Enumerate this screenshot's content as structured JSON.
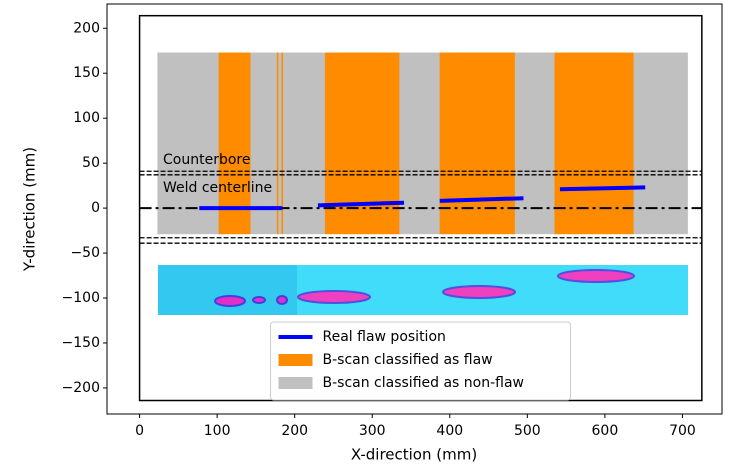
{
  "chart_data": {
    "type": "region",
    "xlabel": "X-direction (mm)",
    "ylabel": "Y-direction (mm)",
    "xlim": [
      -42,
      751
    ],
    "ylim": [
      -229,
      227
    ],
    "xticks": [
      0,
      100,
      200,
      300,
      400,
      500,
      600,
      700
    ],
    "yticks": [
      {
        "value": -200,
        "label": "−200"
      },
      {
        "value": -150,
        "label": "−150"
      },
      {
        "value": -100,
        "label": "−100"
      },
      {
        "value": -50,
        "label": "−50"
      },
      0,
      50,
      100,
      150,
      200
    ],
    "plate": {
      "x": [
        0,
        725
      ],
      "y": [
        -214,
        214
      ]
    },
    "counterbore_lines": [
      41,
      37,
      -33,
      -39
    ],
    "centerline": 0,
    "annotations": [
      "Counterbore",
      "Weld centerline"
    ],
    "series": [
      {
        "name": "Real flaw position",
        "color": "#0000ff",
        "kind": "line",
        "x": [
          77,
          184,
          null,
          230,
          341,
          null,
          387,
          495,
          null,
          542,
          652
        ],
        "values": [
          0,
          0,
          null,
          3,
          6,
          null,
          8,
          11,
          null,
          21,
          23
        ]
      },
      {
        "name": "B-scan classified as flaw",
        "color": "#ff8c00",
        "kind": "span",
        "x_ranges": [
          [
            102,
            143
          ],
          [
            177,
            179
          ],
          [
            183,
            185
          ],
          [
            239,
            335
          ],
          [
            387,
            484
          ],
          [
            535,
            637
          ]
        ],
        "y_range": [
          -29,
          173
        ]
      },
      {
        "name": "B-scan classified as non-flaw",
        "color": "#c0c0c0",
        "kind": "span",
        "x_ranges": [
          [
            23,
            707
          ]
        ],
        "y_range": [
          -29,
          173
        ]
      }
    ],
    "legend": "lower center"
  }
}
